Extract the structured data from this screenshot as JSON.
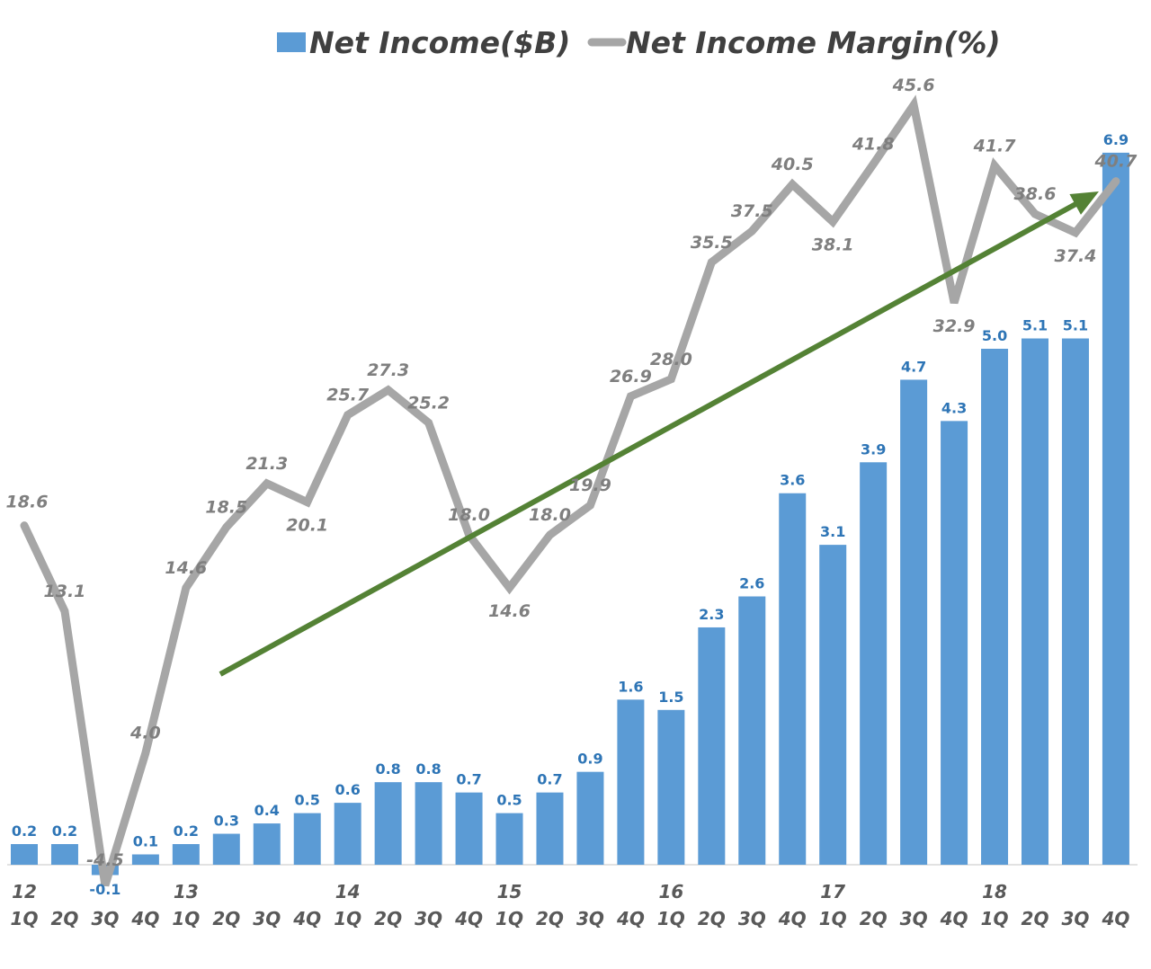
{
  "chart_data": {
    "type": "bar",
    "title": "",
    "legend": [
      "Net Income($B)",
      "Net Income Margin(%)"
    ],
    "legend_position": "top",
    "years": [
      {
        "label": "12",
        "index": 0
      },
      {
        "label": "13",
        "index": 4
      },
      {
        "label": "14",
        "index": 8
      },
      {
        "label": "15",
        "index": 12
      },
      {
        "label": "16",
        "index": 16
      },
      {
        "label": "17",
        "index": 20
      },
      {
        "label": "18",
        "index": 24
      }
    ],
    "categories": [
      "1Q",
      "2Q",
      "3Q",
      "4Q",
      "1Q",
      "2Q",
      "3Q",
      "4Q",
      "1Q",
      "2Q",
      "3Q",
      "4Q",
      "1Q",
      "2Q",
      "3Q",
      "4Q",
      "1Q",
      "2Q",
      "3Q",
      "4Q",
      "1Q",
      "2Q",
      "3Q",
      "4Q",
      "1Q",
      "2Q",
      "3Q",
      "4Q"
    ],
    "series": [
      {
        "name": "Net Income($B)",
        "type": "bar",
        "color": "#5B9BD5",
        "values": [
          0.2,
          0.2,
          -0.1,
          0.1,
          0.2,
          0.3,
          0.4,
          0.5,
          0.6,
          0.8,
          0.8,
          0.7,
          0.5,
          0.7,
          0.9,
          1.6,
          1.5,
          2.3,
          2.6,
          3.6,
          3.1,
          3.9,
          4.7,
          4.3,
          5.0,
          5.1,
          5.1,
          6.9
        ]
      },
      {
        "name": "Net Income Margin(%)",
        "type": "line",
        "color": "#A6A6A6",
        "values": [
          18.6,
          13.1,
          -4.5,
          4.0,
          14.6,
          18.5,
          21.3,
          20.1,
          25.7,
          27.3,
          25.2,
          18.0,
          14.6,
          18.0,
          19.9,
          26.9,
          28.0,
          35.5,
          37.5,
          40.5,
          38.1,
          41.8,
          45.6,
          32.9,
          41.7,
          38.6,
          37.4,
          40.7
        ]
      }
    ],
    "trend_arrow": {
      "color": "#548235",
      "from_index": 5,
      "to_index": 27
    },
    "ylim_bar": [
      -0.4,
      7.5
    ],
    "ylim_line": [
      -5,
      50
    ],
    "grid": false
  }
}
